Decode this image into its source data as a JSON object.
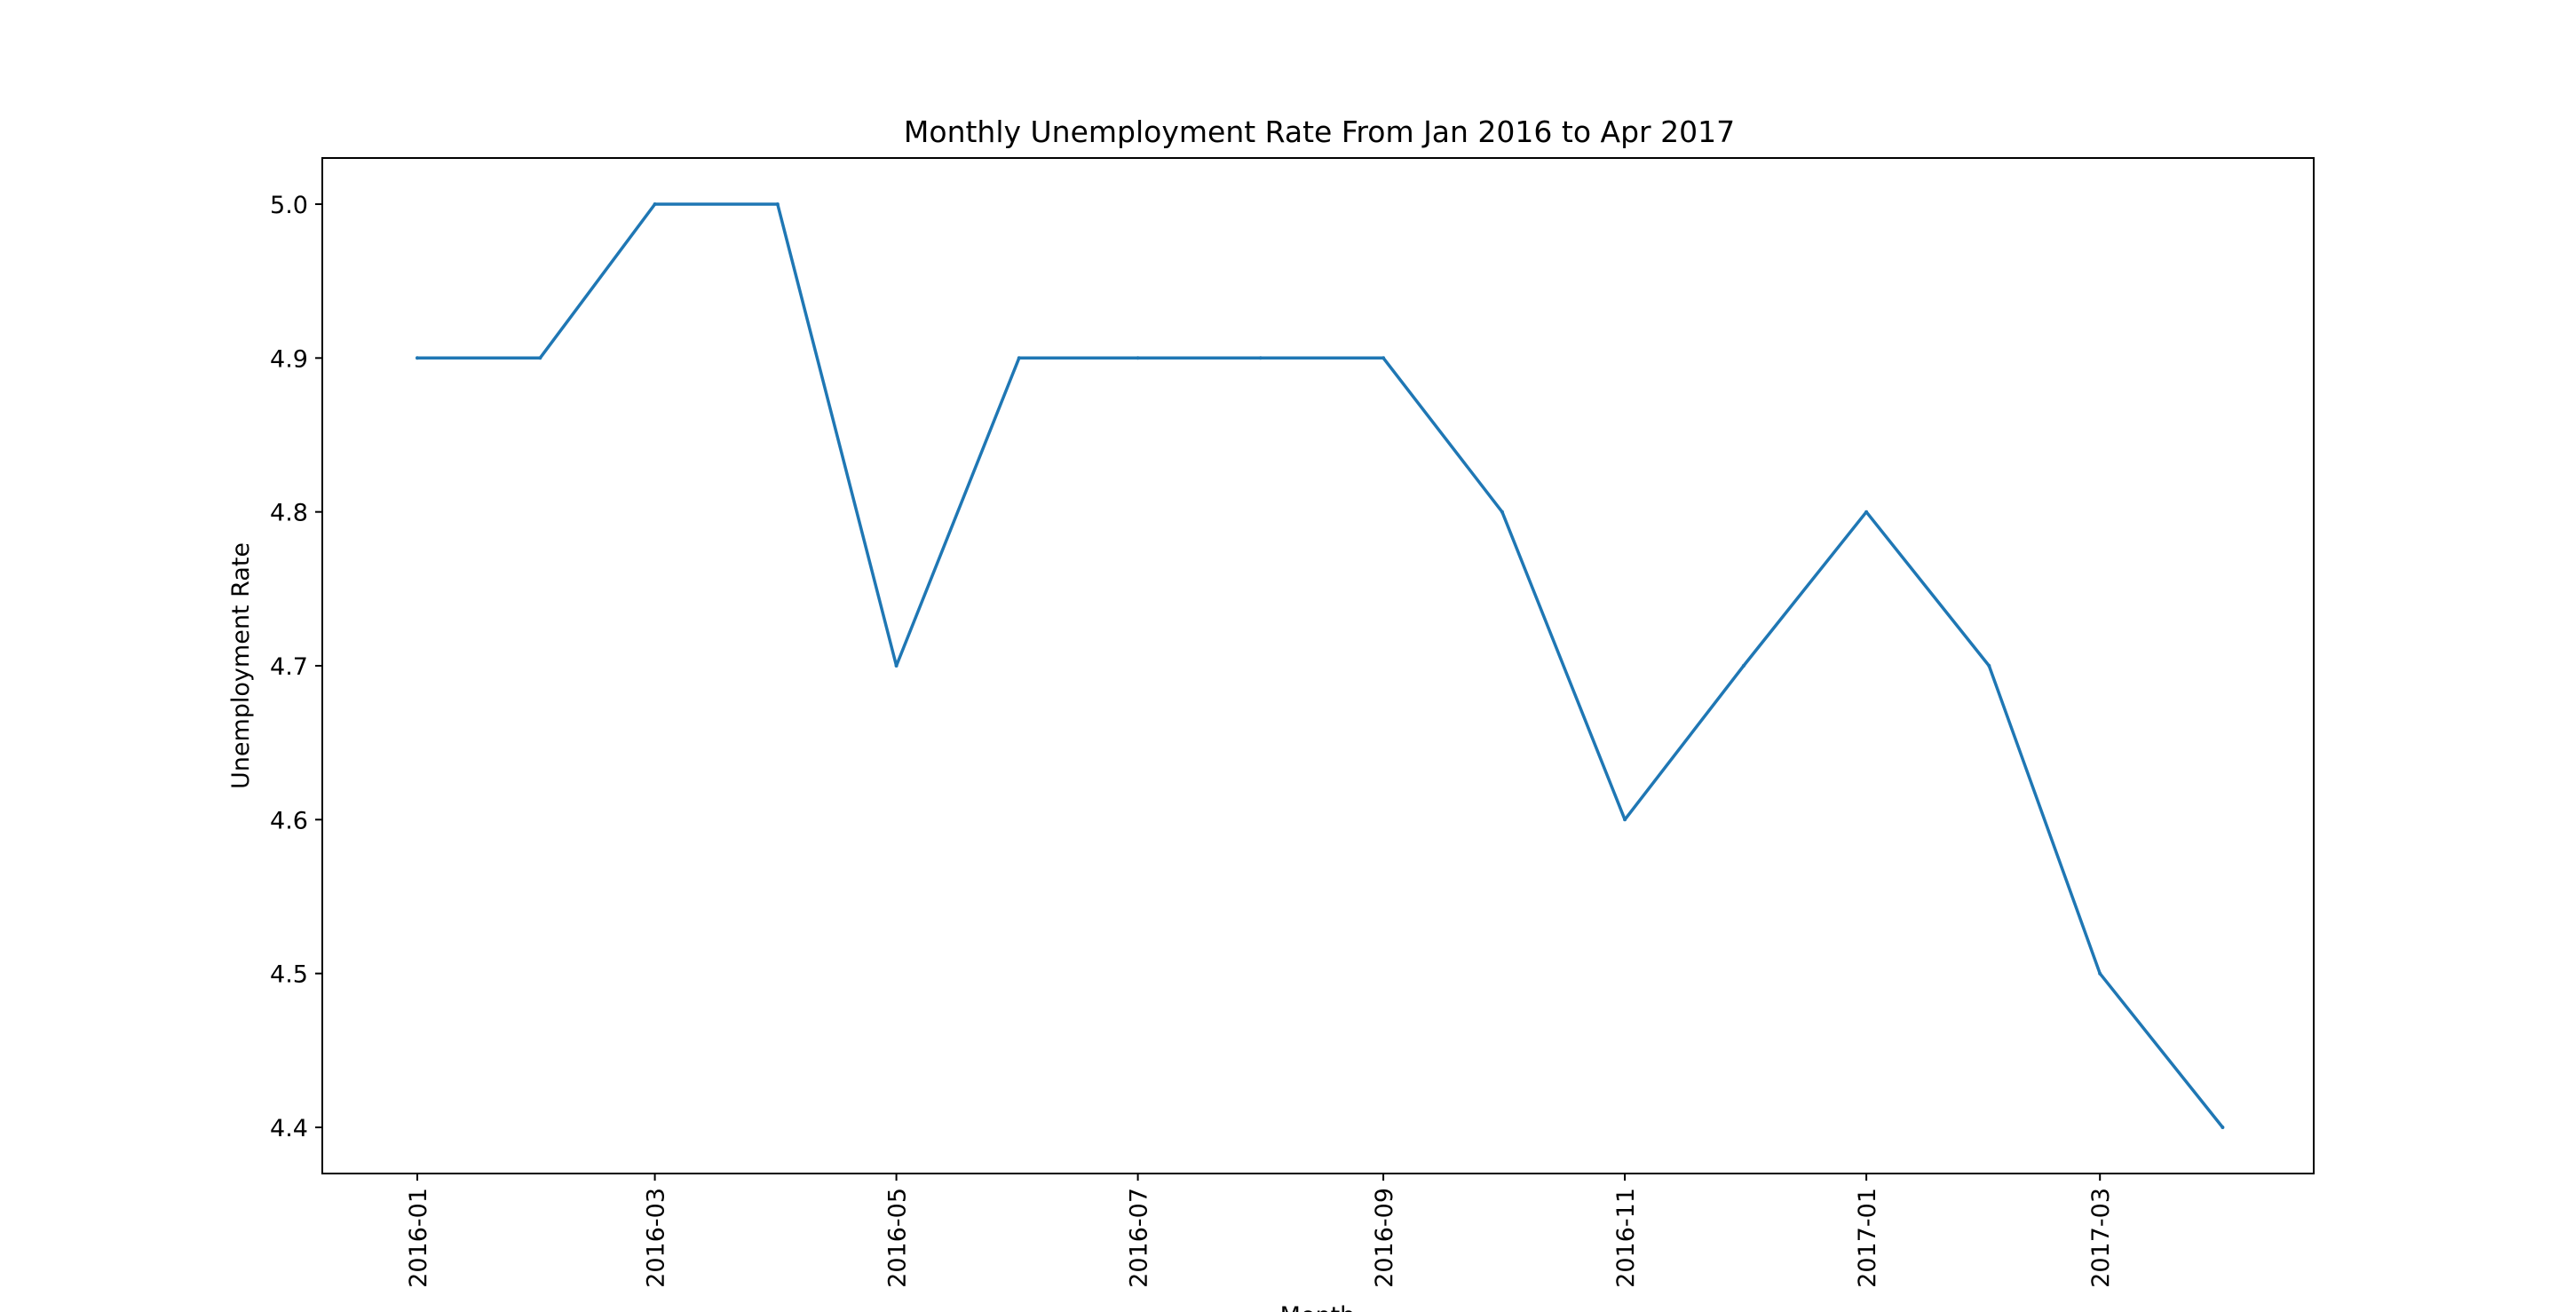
{
  "chart_data": {
    "type": "line",
    "title": "Monthly Unemployment Rate From Jan 2016 to Apr 2017",
    "xlabel": "Month",
    "ylabel": "Unemployment Rate",
    "x": [
      "2016-01-01",
      "2016-02-01",
      "2016-03-01",
      "2016-04-01",
      "2016-05-01",
      "2016-06-01",
      "2016-07-01",
      "2016-08-01",
      "2016-09-01",
      "2016-10-01",
      "2016-11-01",
      "2016-12-01",
      "2017-01-01",
      "2017-02-01",
      "2017-03-01",
      "2017-04-01"
    ],
    "series": [
      {
        "values": [
          4.9,
          4.9,
          5.0,
          5.0,
          4.7,
          4.9,
          4.9,
          4.9,
          4.9,
          4.8,
          4.6,
          4.7,
          4.8,
          4.7,
          4.5,
          4.4
        ]
      }
    ],
    "x_ticks": [
      "2016-01",
      "2016-03",
      "2016-05",
      "2016-07",
      "2016-09",
      "2016-11",
      "2017-01",
      "2017-03"
    ],
    "y_ticks": [
      "4.4",
      "4.5",
      "4.6",
      "4.7",
      "4.8",
      "4.9",
      "5.0"
    ],
    "ylim": [
      4.37,
      5.03
    ],
    "xlim": [
      "2015-12-08",
      "2017-04-24"
    ],
    "grid": false,
    "colors": {
      "line": "#1f77b4",
      "axes": "#000000",
      "background": "#ffffff"
    }
  }
}
